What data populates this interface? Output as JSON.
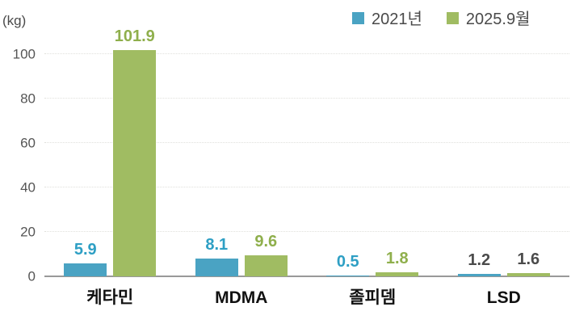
{
  "chart_data": {
    "type": "bar",
    "title": "",
    "unit_label": "(kg)",
    "categories": [
      "케타민",
      "MDMA",
      "졸피뎀",
      "LSD"
    ],
    "series": [
      {
        "name": "2021년",
        "color": "#4AA3C3",
        "label_color": "#2E9FC4",
        "values": [
          5.9,
          8.1,
          0.5,
          1.2
        ]
      },
      {
        "name": "2025.9월",
        "color": "#A0BC62",
        "label_color": "#8FAF4C",
        "values": [
          101.9,
          9.6,
          1.8,
          1.6
        ]
      }
    ],
    "value_label_decimals": 1,
    "muted_value_label_categories": [
      "LSD"
    ],
    "muted_value_label_color": "#4B4B4B",
    "yticks": [
      0,
      20,
      40,
      60,
      80,
      100
    ],
    "ylim": [
      0,
      100
    ],
    "grid": "dotted-horizontal",
    "gridline_color": "#E0E0DC",
    "axis_line_color": "#999999",
    "legend_position": "top-right",
    "background_color": "#FFFFFF"
  }
}
